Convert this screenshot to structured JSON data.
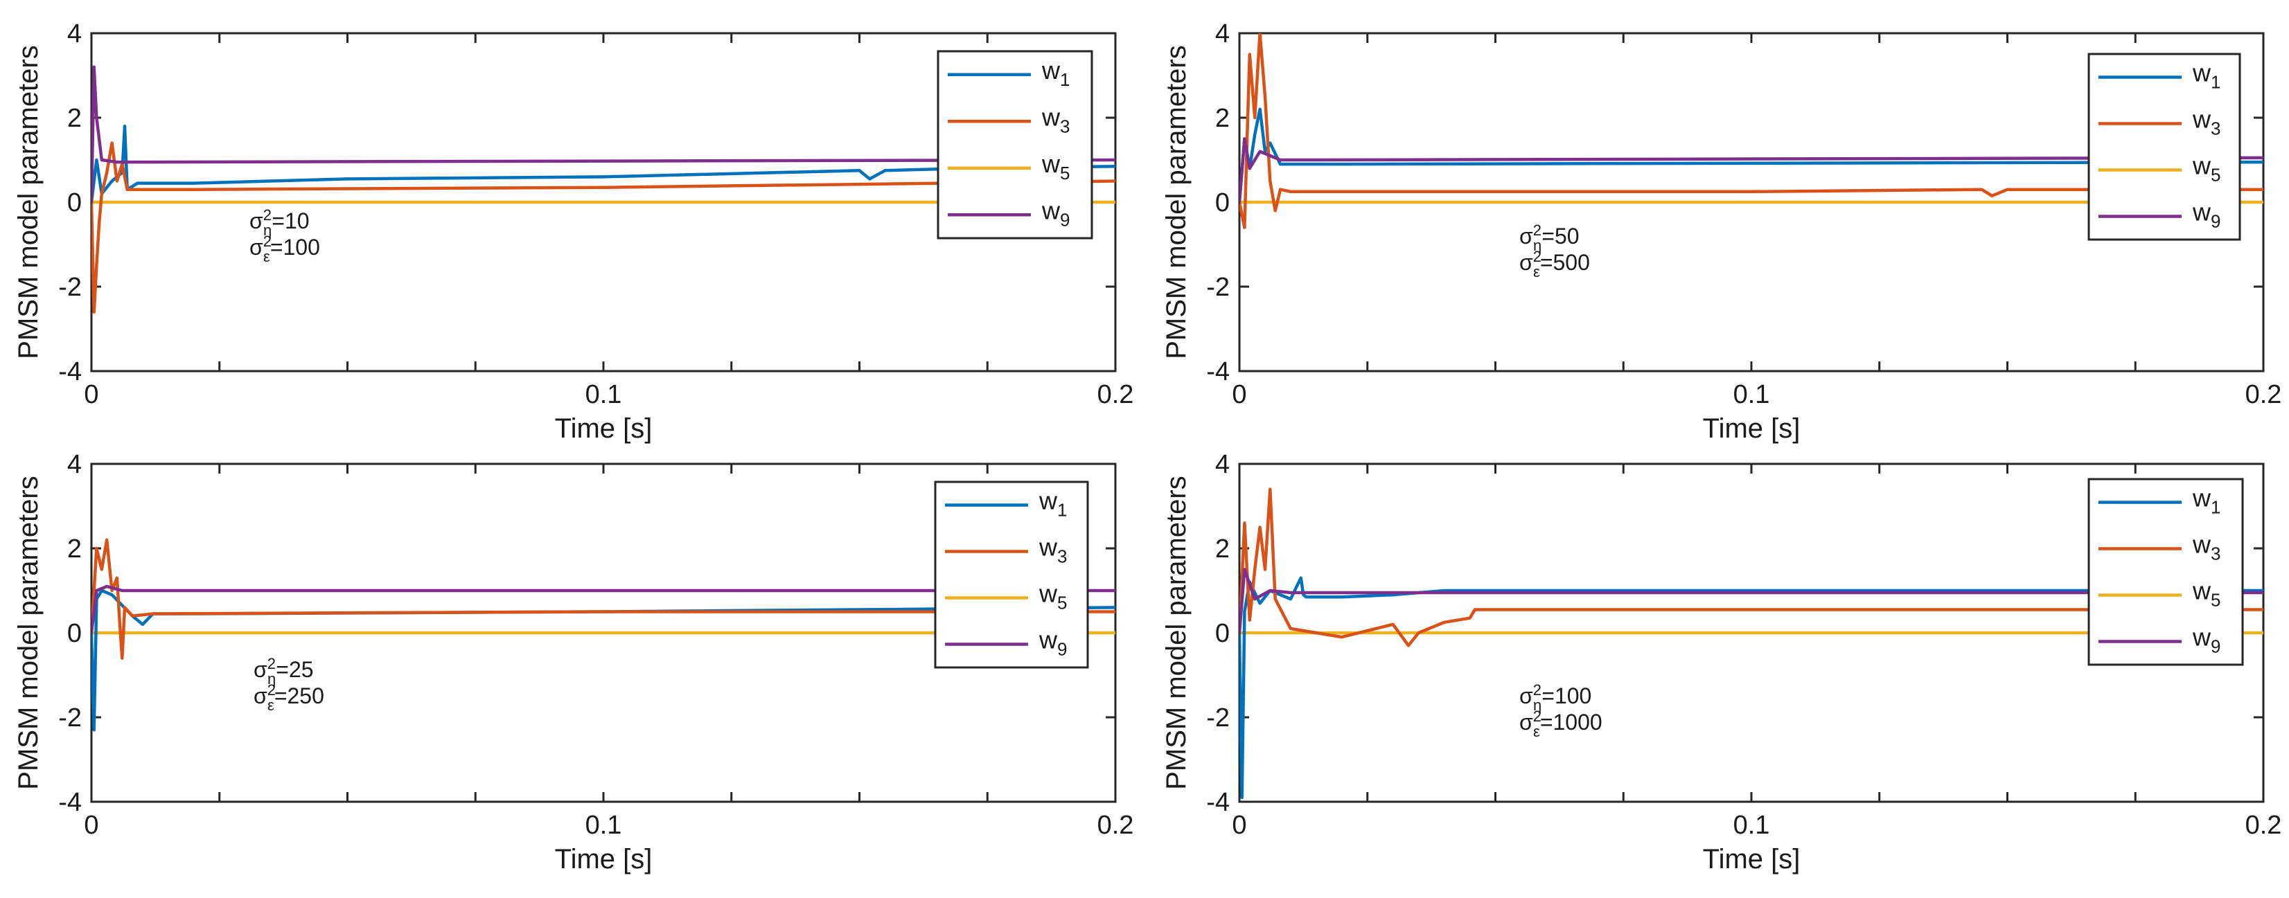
{
  "colors": {
    "w1": "#0072BD",
    "w3": "#D95319",
    "w5": "#EDB120",
    "w9": "#7E2F8E"
  },
  "chart_data": [
    {
      "type": "line",
      "xlabel": "Time [s]",
      "ylabel": "PMSM model parameters",
      "xlim": [
        0,
        0.2
      ],
      "ylim": [
        -4,
        4
      ],
      "xticks": [
        0,
        0.1,
        0.2
      ],
      "xtick_labels": [
        "0",
        "0.1",
        "0.2"
      ],
      "yticks": [
        -4,
        -2,
        0,
        2,
        4
      ],
      "ytick_labels": [
        "-4",
        "-2",
        "0",
        "2",
        "4"
      ],
      "legend": {
        "position": "top-right",
        "labels": [
          [
            "w",
            "1"
          ],
          [
            "w",
            "3"
          ],
          [
            "w",
            "5"
          ],
          [
            "w",
            "9"
          ]
        ]
      },
      "annotation": {
        "sigma_eta": "=10",
        "sigma_eps": "=100"
      },
      "series": [
        {
          "name": "w1",
          "x": [
            0,
            0.001,
            0.002,
            0.004,
            0.006,
            0.0065,
            0.007,
            0.009,
            0.02,
            0.05,
            0.1,
            0.15,
            0.152,
            0.155,
            0.17,
            0.2
          ],
          "y": [
            0,
            1.0,
            0.2,
            0.5,
            0.7,
            1.8,
            0.3,
            0.45,
            0.45,
            0.55,
            0.6,
            0.75,
            0.55,
            0.75,
            0.8,
            0.85
          ]
        },
        {
          "name": "w3",
          "x": [
            0,
            0.0005,
            0.001,
            0.0015,
            0.002,
            0.003,
            0.004,
            0.005,
            0.006,
            0.007,
            0.008,
            0.02,
            0.1,
            0.2
          ],
          "y": [
            0,
            -2.6,
            -1.5,
            -0.5,
            0.2,
            0.7,
            1.4,
            0.5,
            0.9,
            0.3,
            0.3,
            0.3,
            0.35,
            0.5
          ]
        },
        {
          "name": "w5",
          "x": [
            0,
            0.002,
            0.2
          ],
          "y": [
            0,
            0,
            0
          ]
        },
        {
          "name": "w9",
          "x": [
            0,
            0.0005,
            0.001,
            0.002,
            0.005,
            0.01,
            0.2
          ],
          "y": [
            0,
            3.2,
            2.0,
            1.0,
            0.95,
            0.95,
            1.0
          ]
        }
      ]
    },
    {
      "type": "line",
      "xlabel": "Time [s]",
      "ylabel": "PMSM model parameters",
      "xlim": [
        0,
        0.2
      ],
      "ylim": [
        -4,
        4
      ],
      "xticks": [
        0,
        0.1,
        0.2
      ],
      "xtick_labels": [
        "0",
        "0.1",
        "0.2"
      ],
      "yticks": [
        -4,
        -2,
        0,
        2,
        4
      ],
      "ytick_labels": [
        "-4",
        "-2",
        "0",
        "2",
        "4"
      ],
      "legend": {
        "position": "top-right",
        "labels": [
          [
            "w",
            "1"
          ],
          [
            "w",
            "3"
          ],
          [
            "w",
            "5"
          ],
          [
            "w",
            "9"
          ]
        ]
      },
      "annotation": {
        "sigma_eta": "=50",
        "sigma_eps": "=500"
      },
      "series": [
        {
          "name": "w1",
          "x": [
            0,
            0.001,
            0.002,
            0.003,
            0.004,
            0.005,
            0.006,
            0.008,
            0.02,
            0.2
          ],
          "y": [
            0,
            1.5,
            0.8,
            1.6,
            2.2,
            1.2,
            1.4,
            0.9,
            0.9,
            0.95
          ]
        },
        {
          "name": "w3",
          "x": [
            0,
            0.001,
            0.0015,
            0.002,
            0.003,
            0.004,
            0.005,
            0.006,
            0.007,
            0.008,
            0.01,
            0.1,
            0.145,
            0.147,
            0.15,
            0.2
          ],
          "y": [
            0,
            -0.6,
            1.5,
            3.5,
            2.0,
            4.0,
            2.5,
            0.5,
            -0.2,
            0.3,
            0.25,
            0.25,
            0.3,
            0.15,
            0.3,
            0.3
          ]
        },
        {
          "name": "w5",
          "x": [
            0,
            0.002,
            0.2
          ],
          "y": [
            0,
            0,
            0
          ]
        },
        {
          "name": "w9",
          "x": [
            0,
            0.001,
            0.002,
            0.004,
            0.008,
            0.015,
            0.2
          ],
          "y": [
            0,
            1.5,
            0.8,
            1.2,
            1.0,
            1.0,
            1.05
          ]
        }
      ]
    },
    {
      "type": "line",
      "xlabel": "Time [s]",
      "ylabel": "PMSM model parameters",
      "xlim": [
        0,
        0.2
      ],
      "ylim": [
        -4,
        4
      ],
      "xticks": [
        0,
        0.1,
        0.2
      ],
      "xtick_labels": [
        "0",
        "0.1",
        "0.2"
      ],
      "yticks": [
        -4,
        -2,
        0,
        2,
        4
      ],
      "ytick_labels": [
        "-4",
        "-2",
        "0",
        "2",
        "4"
      ],
      "legend": {
        "position": "top-right",
        "labels": [
          [
            "w",
            "1"
          ],
          [
            "w",
            "3"
          ],
          [
            "w",
            "5"
          ],
          [
            "w",
            "9"
          ]
        ]
      },
      "annotation": {
        "sigma_eta": "=25",
        "sigma_eps": "=250"
      },
      "series": [
        {
          "name": "w1",
          "x": [
            0,
            0.0005,
            0.001,
            0.002,
            0.004,
            0.008,
            0.01,
            0.012,
            0.02,
            0.1,
            0.2
          ],
          "y": [
            0,
            -2.3,
            0.8,
            1.0,
            0.9,
            0.4,
            0.2,
            0.45,
            0.45,
            0.5,
            0.6
          ]
        },
        {
          "name": "w3",
          "x": [
            0,
            0.001,
            0.002,
            0.003,
            0.004,
            0.005,
            0.0055,
            0.006,
            0.0065,
            0.008,
            0.012,
            0.1,
            0.2
          ],
          "y": [
            0,
            2.0,
            1.5,
            2.2,
            1.0,
            1.3,
            0.3,
            -0.6,
            0.6,
            0.4,
            0.45,
            0.5,
            0.5
          ]
        },
        {
          "name": "w5",
          "x": [
            0,
            0.002,
            0.2
          ],
          "y": [
            0,
            0,
            0
          ]
        },
        {
          "name": "w9",
          "x": [
            0,
            0.001,
            0.003,
            0.006,
            0.2
          ],
          "y": [
            0,
            1.0,
            1.1,
            1.0,
            1.0
          ]
        }
      ]
    },
    {
      "type": "line",
      "xlabel": "Time [s]",
      "ylabel": "PMSM model parameters",
      "xlim": [
        0,
        0.2
      ],
      "ylim": [
        -4,
        4
      ],
      "xticks": [
        0,
        0.1,
        0.2
      ],
      "xtick_labels": [
        "0",
        "0.1",
        "0.2"
      ],
      "yticks": [
        -4,
        -2,
        0,
        2,
        4
      ],
      "ytick_labels": [
        "-4",
        "-2",
        "0",
        "2",
        "4"
      ],
      "legend": {
        "position": "top-right",
        "labels": [
          [
            "w",
            "1"
          ],
          [
            "w",
            "3"
          ],
          [
            "w",
            "5"
          ],
          [
            "w",
            "9"
          ]
        ]
      },
      "annotation": {
        "sigma_eta": "=100",
        "sigma_eps": "=1000"
      },
      "series": [
        {
          "name": "w1",
          "x": [
            0,
            0.0005,
            0.001,
            0.002,
            0.004,
            0.006,
            0.01,
            0.012,
            0.0125,
            0.013,
            0.02,
            0.03,
            0.04,
            0.2
          ],
          "y": [
            0,
            -3.9,
            0.5,
            1.2,
            0.7,
            1.0,
            0.8,
            1.3,
            0.9,
            0.85,
            0.85,
            0.9,
            1.0,
            1.0
          ]
        },
        {
          "name": "w3",
          "x": [
            0,
            0.001,
            0.002,
            0.003,
            0.004,
            0.005,
            0.006,
            0.007,
            0.01,
            0.015,
            0.02,
            0.03,
            0.033,
            0.035,
            0.04,
            0.045,
            0.046,
            0.2
          ],
          "y": [
            0,
            2.6,
            0.3,
            1.5,
            2.5,
            1.5,
            3.4,
            0.8,
            0.1,
            0.0,
            -0.1,
            0.2,
            -0.3,
            0.0,
            0.25,
            0.35,
            0.55,
            0.55
          ]
        },
        {
          "name": "w5",
          "x": [
            0,
            0.002,
            0.2
          ],
          "y": [
            0,
            0,
            0
          ]
        },
        {
          "name": "w9",
          "x": [
            0,
            0.001,
            0.003,
            0.006,
            0.01,
            0.2
          ],
          "y": [
            0,
            1.5,
            0.8,
            1.0,
            0.95,
            0.95
          ]
        }
      ]
    }
  ]
}
